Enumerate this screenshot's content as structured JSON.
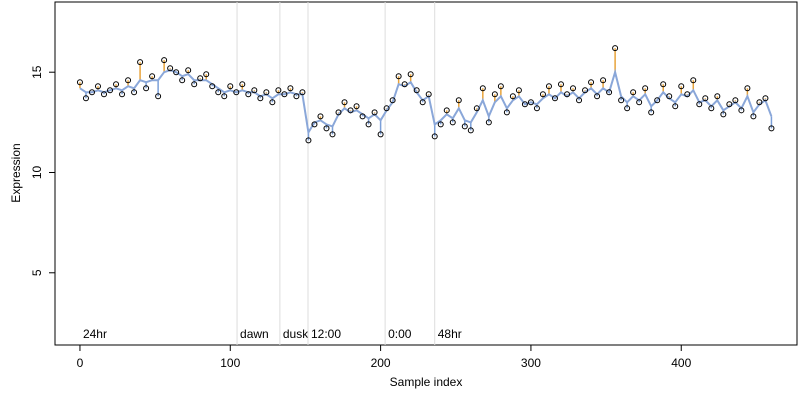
{
  "chart_data": {
    "type": "scatter",
    "xlabel": "Sample index",
    "ylabel": "Expression",
    "xlim": [
      -16.6,
      477
    ],
    "ylim": [
      1.4,
      18.5
    ],
    "xticks": [
      0,
      100,
      200,
      300,
      400
    ],
    "yticks": [
      5,
      10,
      15
    ],
    "grid": false,
    "annotations": [
      {
        "x": 0,
        "label": "24hr"
      },
      {
        "x": 104.5,
        "label": "dawn"
      },
      {
        "x": 133,
        "label": "dusk"
      },
      {
        "x": 151.7,
        "label": "12:00"
      },
      {
        "x": 203,
        "label": "0:00"
      },
      {
        "x": 236,
        "label": "48hr"
      }
    ],
    "above_color": "#e8a33a",
    "below_color": "#7b9fd8",
    "x": [
      0,
      4,
      8,
      12,
      16,
      20,
      24,
      28,
      32,
      36,
      40,
      44,
      48,
      52,
      56,
      60,
      64,
      68,
      72,
      76,
      80,
      84,
      88,
      92,
      96,
      100,
      104,
      108,
      112,
      116,
      120,
      124,
      128,
      132,
      136,
      140,
      144,
      148,
      152,
      156,
      160,
      164,
      168,
      172,
      176,
      180,
      184,
      188,
      192,
      196,
      200,
      204,
      208,
      212,
      216,
      220,
      224,
      228,
      232,
      236,
      240,
      244,
      248,
      252,
      256,
      260,
      264,
      268,
      272,
      276,
      280,
      284,
      288,
      292,
      296,
      300,
      304,
      308,
      312,
      316,
      320,
      324,
      328,
      332,
      336,
      340,
      344,
      348,
      352,
      356,
      360,
      364,
      368,
      372,
      376,
      380,
      384,
      388,
      392,
      396,
      400,
      404,
      408,
      412,
      416,
      420,
      424,
      428,
      432,
      436,
      440,
      444,
      448,
      452,
      456,
      460
    ],
    "series": [
      {
        "color": "#8aa7d9",
        "values": [
          14.2,
          14.0,
          14.0,
          14.1,
          14.0,
          14.1,
          14.2,
          14.1,
          14.3,
          14.2,
          14.6,
          14.5,
          14.6,
          14.6,
          15.0,
          15.1,
          15.0,
          14.8,
          14.9,
          14.6,
          14.6,
          14.6,
          14.4,
          14.2,
          14.0,
          14.1,
          14.0,
          14.1,
          14.0,
          14.0,
          13.8,
          13.9,
          13.7,
          13.9,
          13.9,
          14.0,
          13.9,
          13.9,
          12.0,
          12.5,
          12.6,
          12.4,
          12.3,
          12.9,
          13.2,
          13.0,
          13.1,
          12.9,
          12.7,
          12.9,
          12.6,
          13.1,
          13.5,
          14.4,
          14.3,
          14.5,
          14.0,
          13.6,
          13.8,
          12.4,
          12.6,
          12.9,
          12.7,
          13.2,
          12.6,
          12.5,
          13.0,
          13.6,
          12.8,
          13.5,
          13.8,
          13.2,
          13.6,
          13.8,
          13.4,
          13.5,
          13.4,
          13.7,
          13.9,
          13.7,
          14.0,
          13.8,
          14.0,
          13.7,
          14.0,
          14.2,
          13.9,
          14.2,
          14.0,
          15.0,
          13.8,
          13.5,
          13.8,
          13.6,
          13.9,
          13.3,
          13.6,
          14.0,
          13.7,
          13.5,
          13.9,
          13.8,
          14.1,
          13.5,
          13.6,
          13.3,
          13.6,
          13.1,
          13.3,
          13.5,
          13.2,
          13.8,
          13.0,
          13.4,
          13.6,
          12.8
        ]
      },
      {
        "color": "#000000",
        "values": [
          14.5,
          13.7,
          14.0,
          14.3,
          13.9,
          14.1,
          14.4,
          13.9,
          14.6,
          14.0,
          15.5,
          14.2,
          14.8,
          13.8,
          15.6,
          15.2,
          15.0,
          14.6,
          15.1,
          14.4,
          14.7,
          14.9,
          14.3,
          14.0,
          13.8,
          14.3,
          14.0,
          14.4,
          13.9,
          14.1,
          13.7,
          14.0,
          13.5,
          14.1,
          13.9,
          14.2,
          13.8,
          14.0,
          11.6,
          12.4,
          12.8,
          12.2,
          11.9,
          13.0,
          13.5,
          13.1,
          13.3,
          12.8,
          12.4,
          13.0,
          11.9,
          13.2,
          13.6,
          14.8,
          14.4,
          14.9,
          14.1,
          13.5,
          13.9,
          11.8,
          12.4,
          13.1,
          12.5,
          13.6,
          12.3,
          12.1,
          13.2,
          14.2,
          12.5,
          13.9,
          14.3,
          13.0,
          13.8,
          14.1,
          13.4,
          13.5,
          13.2,
          13.9,
          14.3,
          13.7,
          14.4,
          13.9,
          14.2,
          13.6,
          14.1,
          14.5,
          13.8,
          14.6,
          14.0,
          16.2,
          13.6,
          13.2,
          14.0,
          13.5,
          14.2,
          13.0,
          13.6,
          14.4,
          13.8,
          13.3,
          14.3,
          13.9,
          14.6,
          13.4,
          13.7,
          13.2,
          13.8,
          12.9,
          13.4,
          13.6,
          13.1,
          14.2,
          12.8,
          13.5,
          13.7,
          12.2
        ]
      }
    ]
  }
}
